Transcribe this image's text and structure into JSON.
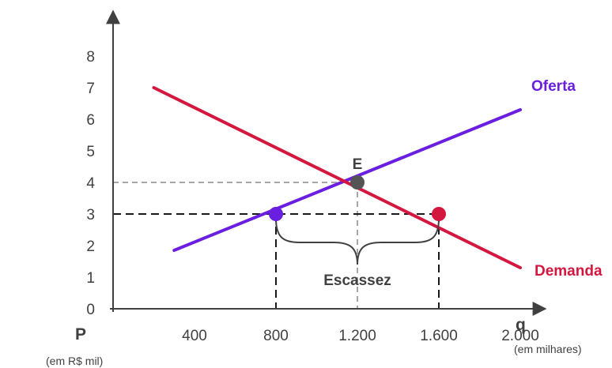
{
  "chart_data": {
    "type": "line",
    "title": "",
    "xlabel": "q",
    "xlabel_unit": "(em milhares)",
    "ylabel": "P",
    "ylabel_unit": "(em R$ mil)",
    "xlim": [
      0,
      2200
    ],
    "ylim": [
      0,
      8.5
    ],
    "x_ticks": [
      400,
      800,
      1200,
      1600,
      2000
    ],
    "x_tick_labels": [
      "400",
      "800",
      "1.200",
      "1.600",
      "2.000"
    ],
    "y_ticks": [
      0,
      1,
      2,
      3,
      4,
      5,
      6,
      7,
      8
    ],
    "y_tick_labels": [
      "0",
      "1",
      "2",
      "3",
      "4",
      "5",
      "6",
      "7",
      "8"
    ],
    "grid": false,
    "series": [
      {
        "name": "Oferta",
        "color": "#6a1fe0",
        "points": [
          [
            300,
            1.85
          ],
          [
            2000,
            6.3
          ]
        ]
      },
      {
        "name": "Demanda",
        "color": "#d4173f",
        "points": [
          [
            200,
            7.0
          ],
          [
            2000,
            1.3
          ]
        ]
      }
    ],
    "points": [
      {
        "label": "E",
        "x": 1200,
        "y": 4,
        "color": "#545454"
      },
      {
        "label": "",
        "x": 800,
        "y": 3,
        "color": "#6a1fe0"
      },
      {
        "label": "",
        "x": 1600,
        "y": 3,
        "color": "#d4173f"
      }
    ],
    "annotations": [
      {
        "text": "Escassez",
        "type": "brace",
        "x_from": 800,
        "x_to": 1600,
        "y": 3
      }
    ]
  }
}
